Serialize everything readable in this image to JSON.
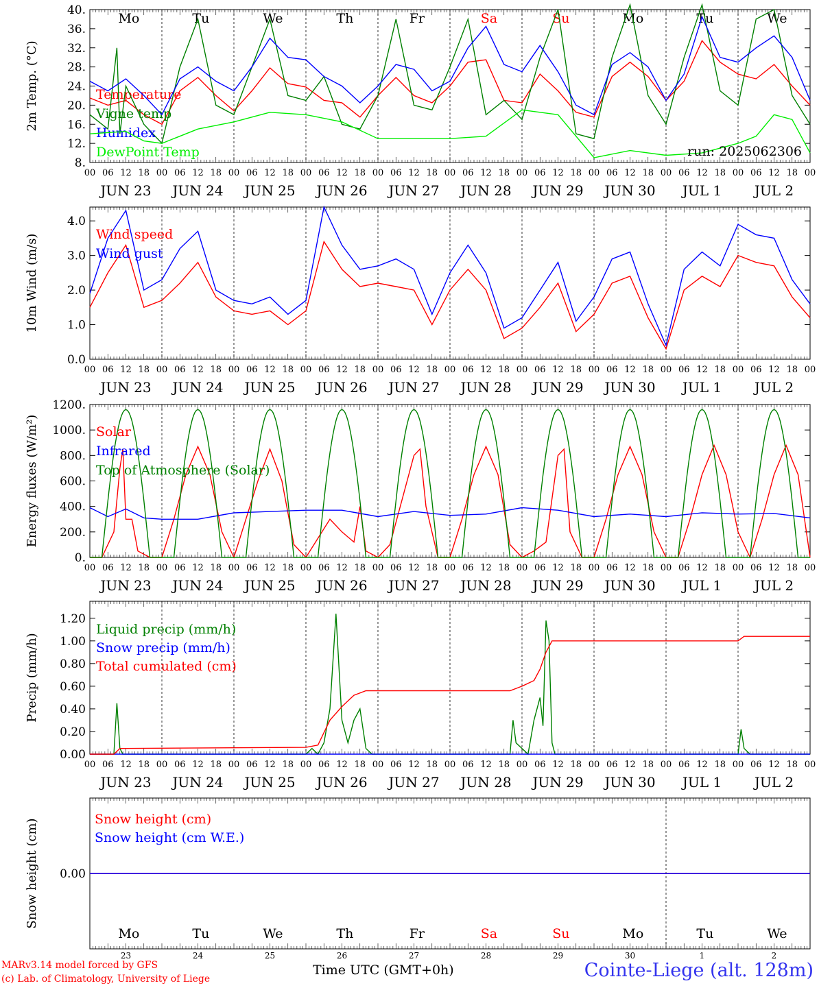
{
  "time_axis": {
    "hour_labels": [
      "00",
      "06",
      "12",
      "18"
    ],
    "date_labels": [
      "JUN 23",
      "JUN 24",
      "JUN 25",
      "JUN 26",
      "JUN 27",
      "JUN 28",
      "JUN 29",
      "JUN 30",
      "JUL  1",
      "JUL  2"
    ],
    "weekdays": [
      "Mo",
      "Tu",
      "We",
      "Th",
      "Fr",
      "Sa",
      "Su",
      "Mo",
      "Tu",
      "We"
    ],
    "weekday_colors": [
      "#000000",
      "#000000",
      "#000000",
      "#000000",
      "#000000",
      "#ff0000",
      "#ff0000",
      "#000000",
      "#000000",
      "#000000"
    ],
    "day_numbers": [
      "23",
      "24",
      "25",
      "26",
      "27",
      "28",
      "29",
      "30",
      "1",
      "2"
    ]
  },
  "footer": {
    "model_line": "MARv3.14 model forced by GFS",
    "credit_line": "(c) Lab. of Climatology, University of Liege",
    "time_label": "Time UTC (GMT+0h)",
    "station": "Cointe-Liege (alt. 128m)"
  },
  "chart_data": [
    {
      "type": "line",
      "ylabel": "2m Temp. (°C)",
      "ylim": [
        8,
        40
      ],
      "yticks": [
        "8.",
        "12.",
        "16.",
        "20.",
        "24.",
        "28.",
        "32.",
        "36.",
        "40."
      ],
      "annotation": "run: 2025062306",
      "x_unit": "hours since Jun 23 00 UTC",
      "series": [
        {
          "name": "Temperature",
          "color": "#ff0000",
          "x": [
            0,
            6,
            12,
            18,
            24,
            30,
            36,
            42,
            48,
            54,
            60,
            66,
            72,
            78,
            84,
            90,
            96,
            102,
            108,
            114,
            120,
            126,
            132,
            138,
            144,
            150,
            156,
            162,
            168,
            174,
            180,
            186,
            192,
            198,
            204,
            210,
            216,
            222,
            228,
            234,
            240
          ],
          "values": [
            21.5,
            20,
            21,
            18,
            16,
            23,
            25.8,
            22,
            18.8,
            23,
            27.8,
            24.5,
            23.8,
            21,
            20.5,
            17.5,
            22,
            25.8,
            22,
            20.5,
            24,
            29,
            29.5,
            21,
            20.5,
            26.5,
            23,
            18.5,
            17.5,
            26,
            29,
            26,
            21,
            25,
            33.5,
            29,
            26.5,
            25.5,
            28.5,
            24,
            20
          ]
        },
        {
          "name": "Vigne temp",
          "color": "#008000",
          "x": [
            0,
            6,
            9,
            10,
            12,
            18,
            24,
            30,
            36,
            42,
            48,
            54,
            60,
            66,
            72,
            78,
            84,
            90,
            96,
            102,
            108,
            114,
            120,
            126,
            132,
            138,
            144,
            150,
            156,
            162,
            168,
            174,
            180,
            186,
            192,
            198,
            204,
            210,
            216,
            222,
            228,
            234,
            240
          ],
          "values": [
            18,
            15,
            32,
            14,
            24,
            16,
            12,
            28,
            38,
            20,
            18,
            28,
            38,
            22,
            21,
            26,
            16,
            15,
            22,
            38,
            20,
            19,
            28,
            38,
            18,
            21,
            17,
            30,
            40,
            14,
            13,
            30,
            41,
            22,
            16,
            30,
            41,
            23,
            20,
            38,
            40,
            22,
            16
          ]
        },
        {
          "name": "Humidex",
          "color": "#0000ff",
          "x": [
            0,
            6,
            12,
            18,
            24,
            30,
            36,
            42,
            48,
            54,
            60,
            66,
            72,
            78,
            84,
            90,
            96,
            102,
            108,
            114,
            120,
            126,
            132,
            138,
            144,
            150,
            156,
            162,
            168,
            174,
            180,
            186,
            192,
            198,
            204,
            210,
            216,
            222,
            228,
            234,
            240
          ],
          "values": [
            25,
            23,
            25.5,
            22,
            18,
            25.5,
            28,
            25,
            23,
            28,
            34,
            30,
            29.5,
            26,
            24,
            20.5,
            24,
            28.5,
            27.5,
            23,
            25,
            32,
            36.5,
            28.5,
            27,
            32.5,
            27,
            20,
            18,
            28.5,
            31,
            28,
            21,
            26.5,
            38.5,
            30,
            29,
            32,
            34.5,
            30,
            21
          ]
        },
        {
          "name": "DewPoint Temp",
          "color": "#00ee00",
          "x": [
            0,
            12,
            18,
            24,
            36,
            48,
            60,
            72,
            84,
            96,
            108,
            120,
            132,
            144,
            156,
            168,
            180,
            192,
            204,
            216,
            222,
            228,
            234,
            240
          ],
          "values": [
            14,
            14.5,
            12.5,
            12,
            15,
            16.5,
            18.5,
            18,
            16.5,
            13,
            13,
            13,
            13.5,
            19,
            18,
            9,
            10.5,
            9.5,
            10,
            12,
            13.5,
            18,
            17,
            10
          ]
        }
      ]
    },
    {
      "type": "line",
      "ylabel": "10m Wind (m/s)",
      "ylim": [
        0,
        4.4
      ],
      "yticks": [
        "0.0",
        "1.0",
        "2.0",
        "3.0",
        "4.0"
      ],
      "series": [
        {
          "name": "Wind speed",
          "color": "#ff0000",
          "x": [
            0,
            6,
            12,
            18,
            24,
            30,
            36,
            42,
            48,
            54,
            60,
            66,
            72,
            78,
            84,
            90,
            96,
            102,
            108,
            114,
            120,
            126,
            132,
            138,
            144,
            150,
            156,
            162,
            168,
            174,
            180,
            186,
            192,
            198,
            204,
            210,
            216,
            222,
            228,
            234,
            240
          ],
          "values": [
            1.5,
            2.5,
            3.3,
            1.5,
            1.7,
            2.2,
            2.8,
            1.8,
            1.4,
            1.3,
            1.4,
            1.0,
            1.4,
            3.4,
            2.6,
            2.1,
            2.2,
            2.1,
            2.0,
            1.0,
            2.0,
            2.6,
            2.0,
            0.6,
            0.9,
            1.5,
            2.2,
            0.8,
            1.3,
            2.2,
            2.4,
            1.2,
            0.3,
            2.0,
            2.4,
            2.1,
            3.0,
            2.8,
            2.7,
            1.8,
            1.2
          ]
        },
        {
          "name": "Wind gust",
          "color": "#0000ff",
          "x": [
            0,
            6,
            12,
            18,
            24,
            30,
            36,
            42,
            48,
            54,
            60,
            66,
            72,
            78,
            84,
            90,
            96,
            102,
            108,
            114,
            120,
            126,
            132,
            138,
            144,
            150,
            156,
            162,
            168,
            174,
            180,
            186,
            192,
            198,
            204,
            210,
            216,
            222,
            228,
            234,
            240
          ],
          "values": [
            1.9,
            3.5,
            4.3,
            2.0,
            2.3,
            3.2,
            3.7,
            2.0,
            1.7,
            1.6,
            1.8,
            1.3,
            1.7,
            4.4,
            3.3,
            2.6,
            2.7,
            2.9,
            2.6,
            1.3,
            2.5,
            3.3,
            2.5,
            0.9,
            1.2,
            2.0,
            2.8,
            1.1,
            1.8,
            2.9,
            3.1,
            1.6,
            0.4,
            2.6,
            3.1,
            2.7,
            3.9,
            3.6,
            3.5,
            2.3,
            1.6
          ]
        }
      ]
    },
    {
      "type": "line",
      "ylabel": "Energy fluxes (W/m²)",
      "ylim": [
        0,
        1200
      ],
      "yticks": [
        "0.",
        "200.",
        "400.",
        "600.",
        "800.",
        "1000.",
        "1200."
      ],
      "series": [
        {
          "name": "Solar",
          "color": "#ff0000",
          "x": [
            0,
            4,
            8,
            10,
            11,
            12,
            14,
            16,
            20,
            24,
            28,
            32,
            36,
            40,
            44,
            48,
            52,
            56,
            60,
            64,
            68,
            72,
            76,
            80,
            84,
            88,
            90,
            92,
            96,
            100,
            104,
            108,
            110,
            112,
            116,
            120,
            124,
            128,
            132,
            136,
            140,
            144,
            148,
            152,
            156,
            158,
            160,
            164,
            168,
            172,
            176,
            180,
            184,
            188,
            192,
            196,
            200,
            204,
            208,
            212,
            216,
            220,
            224,
            228,
            232,
            236,
            240
          ],
          "values": [
            0,
            0,
            200,
            700,
            850,
            300,
            300,
            50,
            0,
            0,
            300,
            650,
            870,
            650,
            200,
            0,
            300,
            600,
            850,
            600,
            100,
            0,
            150,
            300,
            200,
            120,
            400,
            50,
            0,
            100,
            450,
            800,
            850,
            400,
            0,
            0,
            300,
            650,
            870,
            650,
            100,
            0,
            50,
            120,
            800,
            850,
            200,
            0,
            0,
            300,
            650,
            870,
            650,
            200,
            0,
            0,
            300,
            650,
            880,
            650,
            200,
            0,
            300,
            650,
            880,
            650,
            0
          ]
        },
        {
          "name": "Infrared",
          "color": "#0000ff",
          "x": [
            0,
            6,
            12,
            18,
            24,
            36,
            48,
            60,
            72,
            84,
            96,
            108,
            120,
            132,
            144,
            156,
            168,
            180,
            192,
            204,
            216,
            228,
            240
          ],
          "values": [
            390,
            320,
            380,
            310,
            300,
            300,
            350,
            360,
            370,
            370,
            320,
            360,
            330,
            340,
            390,
            370,
            320,
            340,
            320,
            350,
            340,
            345,
            310
          ]
        },
        {
          "name": "Top of Atmosphere (Solar)",
          "color": "#008000",
          "daily_peak": 1160,
          "sunrise_h": 4,
          "sunset_h": 20
        }
      ]
    },
    {
      "type": "line",
      "ylabel": "Precip (mm/h)",
      "ylim": [
        0,
        1.35
      ],
      "yticks": [
        "0.00",
        "0.20",
        "0.40",
        "0.60",
        "0.80",
        "1.00",
        "1.20"
      ],
      "series": [
        {
          "name": "Liquid precip (mm/h)",
          "color": "#008000",
          "x": [
            0,
            8,
            9,
            10,
            11,
            240
          ],
          "values": [
            0,
            0,
            0.45,
            0.05,
            0,
            0
          ],
          "extra": [
            [
              72,
              0
            ],
            [
              74,
              0.05
            ],
            [
              76,
              0
            ],
            [
              78,
              0.1
            ],
            [
              80,
              0.4
            ],
            [
              82,
              1.24
            ],
            [
              84,
              0.3
            ],
            [
              86,
              0.1
            ],
            [
              88,
              0.3
            ],
            [
              90,
              0.4
            ],
            [
              92,
              0.05
            ],
            [
              94,
              0
            ],
            [
              140,
              0
            ],
            [
              141,
              0.3
            ],
            [
              142,
              0.1
            ],
            [
              144,
              0.05
            ],
            [
              146,
              0
            ],
            [
              148,
              0.3
            ],
            [
              150,
              0.5
            ],
            [
              151,
              0.25
            ],
            [
              152,
              1.18
            ],
            [
              153,
              1.0
            ],
            [
              154,
              0.1
            ],
            [
              155,
              0
            ],
            [
              216,
              0
            ],
            [
              217,
              0.22
            ],
            [
              218,
              0.05
            ],
            [
              220,
              0
            ]
          ]
        },
        {
          "name": "Snow precip (mm/h)",
          "color": "#0000ff",
          "x": [
            0,
            240
          ],
          "values": [
            0,
            0
          ]
        },
        {
          "name": "Total cumulated (cm)",
          "color": "#ff0000",
          "x": [
            0,
            8,
            10,
            72,
            76,
            80,
            84,
            88,
            92,
            96,
            140,
            144,
            148,
            150,
            152,
            154,
            216,
            218,
            240
          ],
          "values": [
            0,
            0,
            0.05,
            0.06,
            0.08,
            0.3,
            0.42,
            0.52,
            0.56,
            0.56,
            0.56,
            0.6,
            0.65,
            0.75,
            0.9,
            1.0,
            1.0,
            1.04,
            1.04
          ]
        }
      ]
    },
    {
      "type": "line",
      "ylabel": "Snow height (cm)",
      "ylim": [
        -1,
        1
      ],
      "yticks": [
        "0.00"
      ],
      "series": [
        {
          "name": "Snow height (cm)",
          "color": "#ff0000",
          "x": [
            0,
            240
          ],
          "values": [
            0,
            0
          ]
        },
        {
          "name": "Snow height (cm W.E.)",
          "color": "#0000ff",
          "x": [
            0,
            240
          ],
          "values": [
            0,
            0
          ]
        }
      ]
    }
  ]
}
